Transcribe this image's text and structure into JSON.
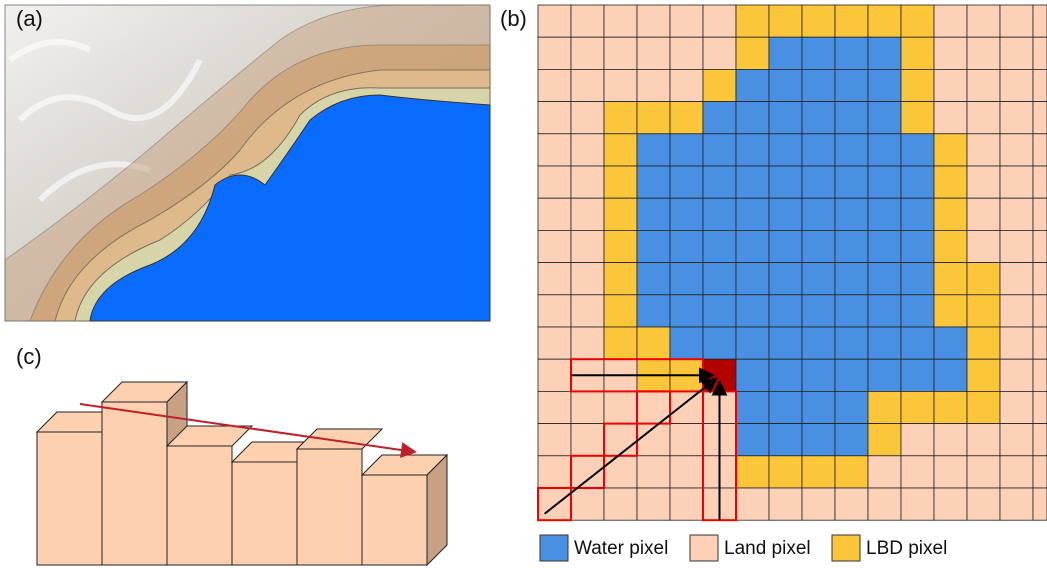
{
  "panels": {
    "a": "(a)",
    "b": "(b)",
    "c": "(c)"
  },
  "legend": [
    "Water pixel",
    "Land pixel",
    "LBD pixel"
  ]
}
